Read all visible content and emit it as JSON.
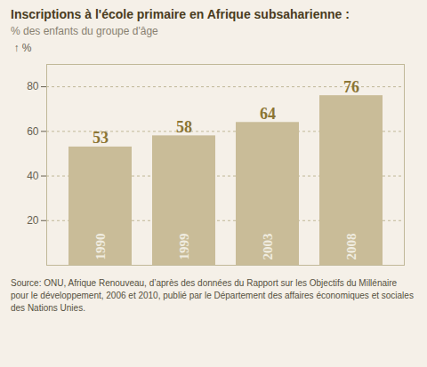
{
  "chart_data": {
    "type": "bar",
    "title": "Inscriptions à l'école primaire en Afrique subsaharienne :",
    "subtitle": "% des enfants du groupe d'âge",
    "y_label": "%",
    "annotations": [
      "Source: ONU, Afrique Renouveau, d’après des données du Rapport sur les Objectifs du Millénaire pour le développement, 2006 et 2010, publié par le Département des affaires économiques et sociales des Nations Unies."
    ],
    "categories": [
      "1990",
      "1999",
      "2003",
      "2008"
    ],
    "values": [
      53,
      58,
      64,
      76
    ],
    "color": "#c9bc98",
    "ylim": [
      0,
      90
    ],
    "yticks": [
      20,
      40,
      60,
      80
    ],
    "grid": true,
    "data_labels": true,
    "tick_labels": "y"
  }
}
